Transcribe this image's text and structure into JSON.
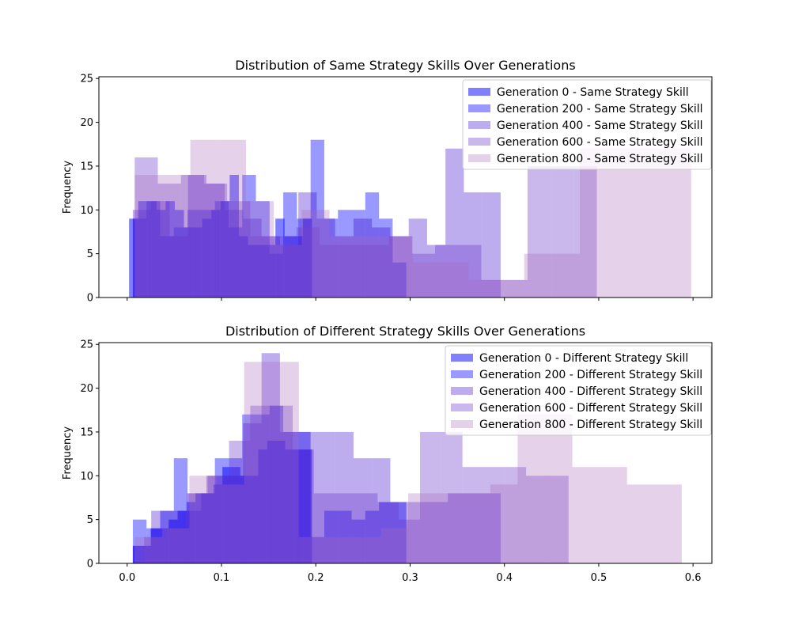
{
  "chart_data": [
    {
      "type": "bar",
      "title": "Distribution of Same Strategy Skills Over Generations",
      "xlabel": "",
      "ylabel": "Frequency",
      "xlim": [
        -0.03,
        0.62
      ],
      "ylim": [
        0,
        25.2
      ],
      "xticks": [],
      "yticks": [
        "0",
        "5",
        "10",
        "15",
        "20",
        "25"
      ],
      "legend_position": "top-right",
      "series": [
        {
          "name": "Generation 0 - Same Strategy Skill",
          "color": "#0000ff",
          "alpha": 0.5,
          "edges": [
            0.002,
            0.0117,
            0.0214,
            0.0311,
            0.0408,
            0.0505,
            0.0602,
            0.0699,
            0.0796,
            0.0893,
            0.099,
            0.1087,
            0.1184,
            0.1281,
            0.1378,
            0.1475,
            0.1572,
            0.1669,
            0.1766,
            0.1863,
            0.196
          ],
          "values": [
            9,
            11,
            11,
            10,
            11,
            10,
            8,
            8,
            9,
            10,
            11,
            14,
            7,
            6,
            6,
            6,
            9,
            7,
            7,
            9
          ]
        },
        {
          "name": "Generation 200 - Same Strategy Skill",
          "color": "#0000ff",
          "alpha": 0.4,
          "edges": [
            0.006,
            0.0205,
            0.035,
            0.0495,
            0.064,
            0.0785,
            0.093,
            0.1075,
            0.122,
            0.1365,
            0.151,
            0.1655,
            0.18,
            0.1945,
            0.209,
            0.2235,
            0.238,
            0.2525,
            0.267,
            0.2815,
            0.296
          ],
          "values": [
            9,
            11,
            7,
            8,
            10,
            10,
            11,
            8,
            14,
            11,
            5,
            12,
            9,
            18,
            9,
            10,
            10,
            12,
            9,
            4
          ]
        },
        {
          "name": "Generation 400 - Same Strategy Skill",
          "color": "#3300cc",
          "alpha": 0.32,
          "edges": [
            0.006,
            0.0255,
            0.045,
            0.0645,
            0.084,
            0.1035,
            0.123,
            0.1425,
            0.162,
            0.1815,
            0.201,
            0.2205,
            0.24,
            0.2595,
            0.279,
            0.2985,
            0.318,
            0.3375,
            0.357,
            0.3765,
            0.396
          ],
          "values": [
            10,
            11,
            7,
            14,
            13,
            10,
            9,
            7,
            6,
            12,
            9,
            7,
            9,
            8,
            7,
            9,
            6,
            17,
            12,
            12
          ]
        },
        {
          "name": "Generation 600 - Same Strategy Skill",
          "color": "#6633cc",
          "alpha": 0.35,
          "edges": [
            0.008,
            0.0325,
            0.057,
            0.0815,
            0.106,
            0.1305,
            0.155,
            0.1795,
            0.204,
            0.2285,
            0.253,
            0.2775,
            0.302,
            0.3265,
            0.351,
            0.3755,
            0.4,
            0.4245,
            0.449,
            0.4735,
            0.498
          ],
          "values": [
            16,
            13,
            14,
            13,
            11,
            7,
            7,
            8,
            6,
            6,
            6,
            7,
            5,
            6,
            6,
            2,
            2,
            15,
            15,
            15
          ]
        },
        {
          "name": "Generation 800 - Same Strategy Skill",
          "color": "#aa66bb",
          "alpha": 0.3,
          "edges": [
            0.008,
            0.0375,
            0.067,
            0.0965,
            0.126,
            0.1555,
            0.185,
            0.2145,
            0.244,
            0.2735,
            0.303,
            0.3325,
            0.362,
            0.3915,
            0.421,
            0.4505,
            0.48,
            0.5095,
            0.539,
            0.5685,
            0.598
          ],
          "values": [
            14,
            14,
            18,
            18,
            11,
            6,
            10,
            7,
            7,
            7,
            4,
            4,
            2,
            2,
            5,
            5,
            17,
            17,
            17,
            17
          ]
        }
      ]
    },
    {
      "type": "bar",
      "title": "Distribution of Different Strategy Skills Over Generations",
      "xlabel": "",
      "ylabel": "Frequency",
      "xlim": [
        -0.03,
        0.62
      ],
      "ylim": [
        0,
        25.2
      ],
      "xticks": [
        "0.0",
        "0.1",
        "0.2",
        "0.3",
        "0.4",
        "0.5",
        "0.6"
      ],
      "yticks": [
        "0",
        "5",
        "10",
        "15",
        "20",
        "25"
      ],
      "legend_position": "top-right",
      "series": [
        {
          "name": "Generation 0 - Different Strategy Skill",
          "color": "#0000ff",
          "alpha": 0.5,
          "edges": [
            0.006,
            0.0155,
            0.025,
            0.0345,
            0.044,
            0.0535,
            0.063,
            0.0725,
            0.082,
            0.0915,
            0.101,
            0.1105,
            0.12,
            0.1295,
            0.139,
            0.1485,
            0.158,
            0.1675,
            0.177,
            0.1865,
            0.196
          ],
          "values": [
            2,
            2,
            4,
            4,
            5,
            6,
            7,
            8,
            8,
            9,
            11,
            11,
            10,
            10,
            13,
            14,
            14,
            13,
            13,
            13
          ]
        },
        {
          "name": "Generation 200 - Different Strategy Skill",
          "color": "#0000ff",
          "alpha": 0.4,
          "edges": [
            0.006,
            0.0205,
            0.035,
            0.0495,
            0.064,
            0.0785,
            0.093,
            0.1075,
            0.122,
            0.1365,
            0.151,
            0.1655,
            0.18,
            0.1945,
            0.209,
            0.2235,
            0.238,
            0.2525,
            0.267,
            0.2815,
            0.296
          ],
          "values": [
            5,
            4,
            6,
            12,
            6,
            8,
            12,
            12,
            17,
            17,
            18,
            15,
            15,
            3,
            6,
            6,
            5,
            6,
            7,
            7
          ]
        },
        {
          "name": "Generation 400 - Different Strategy Skill",
          "color": "#3300cc",
          "alpha": 0.32,
          "edges": [
            0.006,
            0.0255,
            0.045,
            0.0645,
            0.084,
            0.1035,
            0.123,
            0.1425,
            0.162,
            0.1815,
            0.201,
            0.2205,
            0.24,
            0.2595,
            0.279,
            0.3,
            0.32,
            0.34,
            0.36,
            0.38,
            0.396
          ],
          "values": [
            2,
            6,
            6,
            8,
            10,
            10,
            16,
            24,
            15,
            15,
            15,
            15,
            12,
            12,
            7,
            7,
            7,
            8,
            8,
            8
          ]
        },
        {
          "name": "Generation 600 - Different Strategy Skill",
          "color": "#6633cc",
          "alpha": 0.35,
          "edges": [
            0.018,
            0.0405,
            0.063,
            0.0855,
            0.108,
            0.1305,
            0.153,
            0.1755,
            0.198,
            0.2205,
            0.243,
            0.2655,
            0.288,
            0.3105,
            0.333,
            0.3555,
            0.378,
            0.4005,
            0.423,
            0.4455,
            0.468
          ],
          "values": [
            3,
            4,
            8,
            10,
            14,
            18,
            18,
            13,
            8,
            8,
            8,
            7,
            5,
            15,
            15,
            11,
            11,
            11,
            10,
            10
          ]
        },
        {
          "name": "Generation 800 - Different Strategy Skill",
          "color": "#aa66bb",
          "alpha": 0.3,
          "edges": [
            0.008,
            0.037,
            0.066,
            0.095,
            0.124,
            0.153,
            0.182,
            0.211,
            0.24,
            0.269,
            0.298,
            0.327,
            0.356,
            0.385,
            0.414,
            0.443,
            0.472,
            0.501,
            0.53,
            0.559,
            0.588
          ],
          "values": [
            3,
            4,
            10,
            9,
            23,
            23,
            3,
            3,
            3,
            4,
            8,
            8,
            8,
            9,
            17,
            17,
            11,
            11,
            9,
            9
          ]
        }
      ]
    }
  ]
}
